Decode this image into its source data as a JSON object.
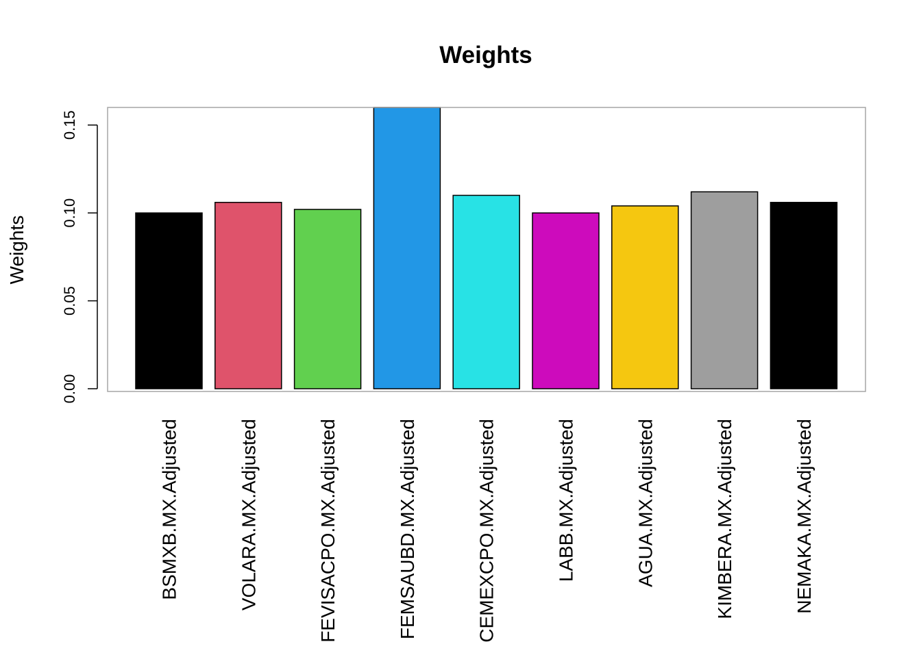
{
  "chart_data": {
    "type": "bar",
    "title": "Weights",
    "ylabel": "Weights",
    "xlabel": "",
    "ylim": [
      0,
      0.16
    ],
    "yticks": [
      0.0,
      0.05,
      0.1,
      0.15
    ],
    "ytick_labels": [
      "0.00",
      "0.05",
      "0.10",
      "0.15"
    ],
    "categories": [
      "BSMXB.MX.Adjusted",
      "VOLARA.MX.Adjusted",
      "FEVISACPO.MX.Adjusted",
      "FEMSAUBD.MX.Adjusted",
      "CEMEXCPO.MX.Adjusted",
      "LABB.MX.Adjusted",
      "AGUA.MX.Adjusted",
      "KIMBERA.MX.Adjusted",
      "NEMAKA.MX.Adjusted"
    ],
    "values": [
      0.1,
      0.106,
      0.102,
      0.16,
      0.11,
      0.1,
      0.104,
      0.112,
      0.106
    ],
    "colors": [
      "#000000",
      "#DF536B",
      "#61D04F",
      "#2297E6",
      "#28E2E5",
      "#CD0BBC",
      "#F5C710",
      "#9E9E9E",
      "#000000"
    ],
    "grid": false,
    "legend": "none"
  }
}
